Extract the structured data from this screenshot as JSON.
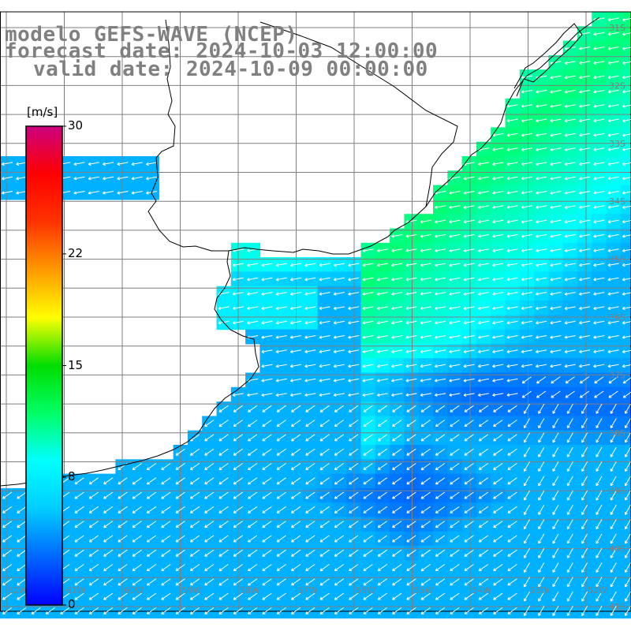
{
  "titles": {
    "line1": "modelo GEFS-WAVE (NCEP)",
    "line2": "forecast date: 2024-10-03 12:00:00",
    "line3": "valid date: 2024-10-09 00:00:00"
  },
  "colorbar": {
    "unit": "[m/s]",
    "ticks": [
      "30",
      "22",
      "15",
      "8",
      "0"
    ],
    "tick_values": [
      30,
      22,
      15,
      8,
      0
    ],
    "range": [
      0,
      30
    ],
    "colors": [
      "#0000ff",
      "#0066ff",
      "#00ccff",
      "#00ffff",
      "#00ff66",
      "#00dd00",
      "#ffff00",
      "#ff9900",
      "#ff3300",
      "#ff0000",
      "#cc0080"
    ]
  },
  "lat_labels": [
    "31S",
    "32S",
    "33S",
    "34S",
    "35S",
    "36S",
    "37S",
    "38S",
    "39S",
    "40S",
    "41S"
  ],
  "lon_labels": [
    "62W",
    "61W",
    "60W",
    "59W",
    "58W",
    "57W",
    "56W",
    "55W",
    "54W",
    "53W",
    "52W"
  ],
  "colors": {
    "grid": "#7f7f7f",
    "coast": "#000000",
    "arrows": "#ffffff",
    "labels": "#808080"
  }
}
